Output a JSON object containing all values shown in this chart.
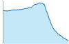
{
  "years": [
    1861,
    1871,
    1881,
    1901,
    1911,
    1921,
    1931,
    1936,
    1951,
    1961,
    1971,
    1981,
    1991,
    2001,
    2011,
    2019
  ],
  "population": [
    3050,
    3020,
    3080,
    3100,
    3150,
    3200,
    3250,
    3380,
    3500,
    3420,
    2700,
    2050,
    1750,
    1550,
    1380,
    1280
  ],
  "line_color": "#1a7abf",
  "fill_color": "#c5e8f7",
  "background_color": "#ffffff",
  "ylim_min": 1100,
  "ylim_max": 3650,
  "xlim_min": 1861,
  "xlim_max": 2019
}
